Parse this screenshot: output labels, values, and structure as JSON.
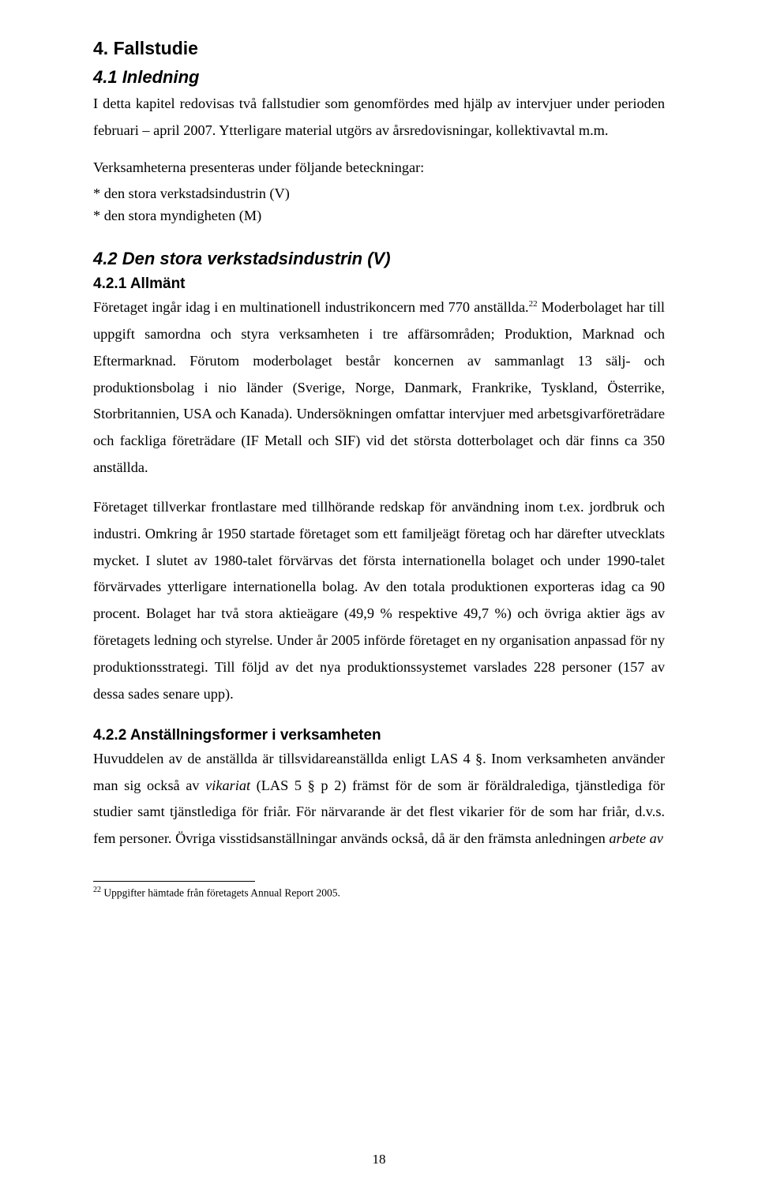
{
  "section4": {
    "title": "4. Fallstudie",
    "s41": {
      "title": "4.1 Inledning",
      "para": "I detta kapitel redovisas två fallstudier som genomfördes med hjälp av intervjuer under perioden februari – april 2007. Ytterligare material utgörs av årsredovisningar, kollektivavtal m.m.",
      "verk_intro": "Verksamheterna presenteras under följande beteckningar:",
      "bullets": {
        "a": "* den stora verkstadsindustrin (V)",
        "b": "* den stora myndigheten (M)"
      }
    },
    "s42": {
      "title": "4.2 Den stora verkstadsindustrin (V)",
      "s421": {
        "title": "4.2.1 Allmänt",
        "p1a": "Företaget ingår idag i en multinationell industrikoncern med 770 anställda.",
        "p1b": " Moderbolaget har till uppgift samordna och styra verksamheten i tre affärsområden; Produktion, Marknad och Eftermarknad. Förutom moderbolaget består koncernen av sammanlagt 13 sälj- och produktionsbolag i nio länder (Sverige, Norge, Danmark, Frankrike, Tyskland, Österrike, Storbritannien, USA och Kanada). Undersökningen omfattar intervjuer med arbetsgivarföreträdare och fackliga företrädare (IF Metall och SIF) vid det största dotterbolaget och där finns ca 350 anställda.",
        "p2": "Företaget tillverkar frontlastare med tillhörande redskap för användning inom t.ex. jordbruk och industri. Omkring år 1950 startade företaget som ett familjeägt företag och har därefter utvecklats mycket. I slutet av 1980-talet förvärvas det första internationella bolaget och under 1990-talet förvärvades ytterligare internationella bolag. Av den totala produktionen exporteras idag ca 90 procent. Bolaget har två stora aktieägare (49,9 % respektive 49,7 %) och övriga aktier ägs av företagets ledning och styrelse. Under år 2005 införde företaget en ny organisation anpassad för ny produktionsstrategi. Till följd av det nya produktionssystemet varslades 228 personer (157 av dessa sades senare upp)."
      },
      "s422": {
        "title": "4.2.2 Anställningsformer i verksamheten",
        "p1a": "Huvuddelen av de anställda är tillsvidareanställda enligt LAS 4 §. Inom verksamheten använder man sig också av ",
        "vikariat": "vikariat",
        "p1b": " (LAS 5 § p 2) främst för de som är föräldralediga, tjänstlediga för studier samt tjänstlediga för friår. För närvarande är det flest vikarier för de som har friår, d.v.s. fem personer. Övriga visstidsanställningar används också, då är den främsta anledningen ",
        "arbete_av": "arbete av"
      }
    }
  },
  "footnote": {
    "num": "22",
    "text": " Uppgifter hämtade från företagets Annual Report 2005."
  },
  "page_number": "18"
}
